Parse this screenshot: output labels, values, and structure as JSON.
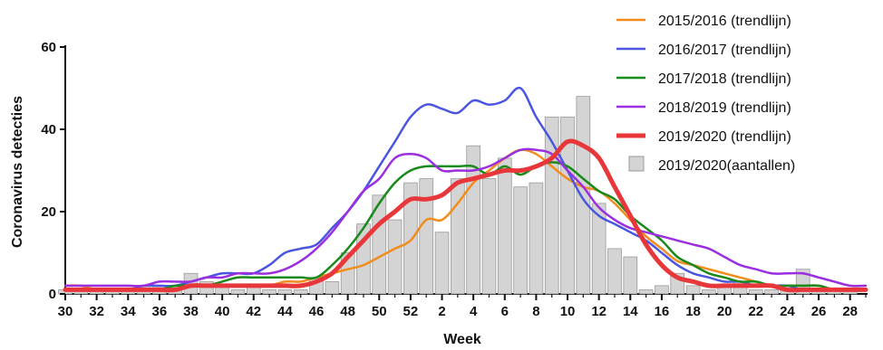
{
  "chart_data": {
    "type": "line",
    "xlabel": "Week",
    "ylabel": "Coronavirus detecties",
    "ylim": [
      0,
      60
    ],
    "yticks": [
      "0",
      "20",
      "40",
      "60"
    ],
    "xticks": [
      "30",
      "32",
      "34",
      "36",
      "38",
      "40",
      "42",
      "44",
      "46",
      "48",
      "50",
      "52",
      "2",
      "4",
      "6",
      "8",
      "10",
      "12",
      "14",
      "16",
      "18",
      "20",
      "22",
      "24",
      "26",
      "28"
    ],
    "x_categories": [
      "30",
      "31",
      "32",
      "33",
      "34",
      "35",
      "36",
      "37",
      "38",
      "39",
      "40",
      "41",
      "42",
      "43",
      "44",
      "45",
      "46",
      "47",
      "48",
      "49",
      "50",
      "51",
      "52",
      "1",
      "2",
      "3",
      "4",
      "5",
      "6",
      "7",
      "8",
      "9",
      "10",
      "11",
      "12",
      "13",
      "14",
      "15",
      "16",
      "17",
      "18",
      "19",
      "20",
      "21",
      "22",
      "23",
      "24",
      "25",
      "26",
      "27",
      "28",
      "29"
    ],
    "grid": false,
    "legend_position": "top-right",
    "series": [
      {
        "name": "2015/2016 (trendlijn)",
        "kind": "line",
        "color": "#f28c1c",
        "width": 2.5,
        "values": [
          2,
          2,
          1,
          1,
          1,
          1,
          1,
          1,
          2,
          2,
          2,
          2,
          2,
          2,
          3,
          3,
          4,
          5,
          6,
          7,
          9,
          11,
          13,
          18,
          18,
          22,
          27,
          30,
          33,
          35,
          34,
          31,
          28,
          26,
          25,
          22,
          18,
          14,
          11,
          8,
          7,
          6,
          5,
          4,
          3,
          2,
          2,
          2,
          2,
          1,
          1,
          1
        ]
      },
      {
        "name": "2016/2017 (trendlijn)",
        "kind": "line",
        "color": "#4a56e0",
        "width": 2.5,
        "values": [
          1,
          1,
          1,
          1,
          1,
          2,
          2,
          2,
          3,
          4,
          5,
          5,
          5,
          7,
          10,
          11,
          12,
          16,
          20,
          25,
          31,
          37,
          43,
          46,
          45,
          44,
          47,
          46,
          47,
          50,
          43,
          37,
          30,
          23,
          19,
          17,
          15,
          13,
          10,
          7,
          5,
          4,
          3,
          3,
          2,
          2,
          2,
          1,
          1,
          1,
          1,
          1
        ]
      },
      {
        "name": "2017/2018 (trendlijn)",
        "kind": "line",
        "color": "#198a1c",
        "width": 2.5,
        "values": [
          1,
          1,
          1,
          1,
          1,
          1,
          1,
          2,
          2,
          2,
          3,
          4,
          4,
          4,
          4,
          4,
          4,
          7,
          11,
          16,
          22,
          27,
          30,
          31,
          31,
          31,
          31,
          29,
          31,
          29,
          31,
          32,
          31,
          28,
          25,
          23,
          19,
          16,
          13,
          9,
          7,
          5,
          4,
          3,
          3,
          2,
          2,
          2,
          2,
          1,
          1,
          1
        ]
      },
      {
        "name": "2018/2019 (trendlijn)",
        "kind": "line",
        "color": "#9b2fe0",
        "width": 2.5,
        "values": [
          2,
          2,
          2,
          2,
          2,
          2,
          3,
          3,
          3,
          4,
          4,
          5,
          5,
          5,
          6,
          8,
          11,
          15,
          20,
          25,
          28,
          33,
          34,
          33,
          30,
          30,
          30,
          31,
          33,
          35,
          35,
          34,
          30,
          26,
          21,
          18,
          16,
          15,
          14,
          13,
          12,
          11,
          9,
          7,
          6,
          5,
          5,
          5,
          4,
          3,
          2,
          2
        ]
      },
      {
        "name": "2019/2020 (trendlijn)",
        "kind": "line",
        "color": "#e8373a",
        "width": 5,
        "values": [
          1,
          1,
          1,
          1,
          1,
          1,
          1,
          1,
          2,
          2,
          2,
          2,
          2,
          2,
          2,
          2,
          3,
          5,
          9,
          13,
          17,
          20,
          23,
          23,
          24,
          27,
          28,
          29,
          30,
          30,
          31,
          33,
          37,
          36,
          33,
          26,
          19,
          12,
          7,
          4,
          3,
          2,
          2,
          2,
          2,
          2,
          1,
          1,
          1,
          1,
          1,
          1
        ]
      },
      {
        "name": "2019/2020(aantallen)",
        "kind": "bar",
        "color": "#d4d4d4",
        "stroke": "#9a9a9a",
        "values": [
          1,
          1,
          1,
          1,
          1,
          2,
          2,
          2,
          5,
          3,
          2,
          1,
          2,
          1,
          1,
          1,
          4,
          3,
          10,
          17,
          24,
          18,
          27,
          28,
          15,
          28,
          36,
          28,
          33,
          26,
          27,
          43,
          43,
          48,
          22,
          11,
          9,
          1,
          2,
          5,
          2,
          1,
          2,
          3,
          1,
          1,
          1,
          6,
          1,
          1,
          1,
          0
        ]
      }
    ]
  }
}
